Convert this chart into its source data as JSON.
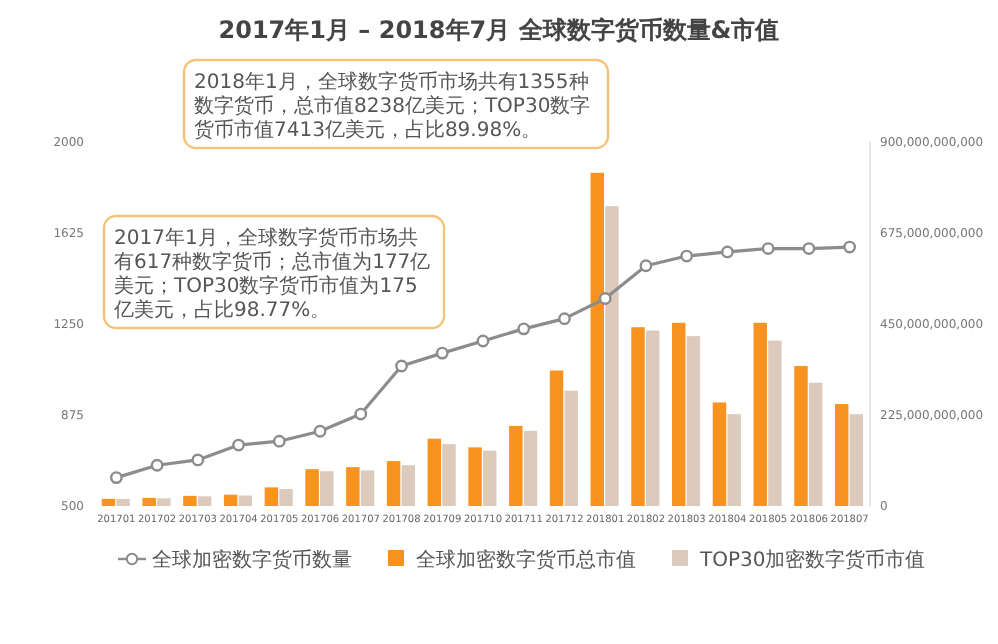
{
  "chart_data": {
    "type": "bar",
    "title": "2017年1月 – 2018年7月 全球数字货币数量&市值",
    "categories": [
      "201701",
      "201702",
      "201703",
      "201704",
      "201705",
      "201706",
      "201707",
      "201708",
      "201709",
      "201710",
      "201711",
      "201712",
      "201801",
      "201802",
      "201803",
      "201804",
      "201805",
      "201806",
      "201807"
    ],
    "series": [
      {
        "name": "全球加密数字货币数量",
        "type": "line",
        "axis": "y",
        "marker": "circle",
        "color": "#8c8c8c",
        "values": [
          617,
          668,
          690,
          751,
          767,
          808,
          879,
          1077,
          1130,
          1180,
          1230,
          1272,
          1355,
          1490,
          1530,
          1547,
          1561,
          1561,
          1567
        ]
      },
      {
        "name": "全球加密数字货币总市值",
        "axis": "y2",
        "color": "#f7931e",
        "values": [
          17700000000,
          20000000000,
          25000000000,
          28000000000,
          46000000000,
          91000000000,
          96000000000,
          111000000000,
          166500000000,
          145000000000,
          198000000000,
          335000000000,
          823800000000,
          442000000000,
          453000000000,
          256000000000,
          453000000000,
          346000000000,
          252000000000
        ]
      },
      {
        "name": "TOP30加密数字货币市值",
        "axis": "y2",
        "color": "#dccbbd",
        "values": [
          17500000000,
          19000000000,
          24000000000,
          26000000000,
          42000000000,
          86000000000,
          88000000000,
          101000000000,
          153000000000,
          137000000000,
          186000000000,
          285000000000,
          741300000000,
          434000000000,
          420000000000,
          227000000000,
          409000000000,
          305000000000,
          227000000000
        ]
      }
    ],
    "ylim": [
      500,
      2000
    ],
    "yticks": [
      500,
      875,
      1250,
      1625,
      2000
    ],
    "y2lim": [
      0,
      900000000000
    ],
    "y2ticks": [
      0,
      {
        "value": 225000000000,
        "label": "225,000,000,000"
      },
      {
        "value": 450000000000,
        "label": "450,000,000,000"
      },
      {
        "value": 675000000000,
        "label": "675,000,000,000"
      },
      {
        "value": 900000000000,
        "label": "900,000,000,000"
      }
    ],
    "annotations": [
      "2018年1月，全球数字货币市场共有1355种数字货币，总市值8238亿美元；TOP30数字货币市值7413亿美元，占比89.98%。",
      "2017年1月，全球数字货币市场共有617种数字货币；总市值为177亿美元；TOP30数字货币市值为175亿美元，占比98.77%。"
    ],
    "legend": "bottom"
  }
}
